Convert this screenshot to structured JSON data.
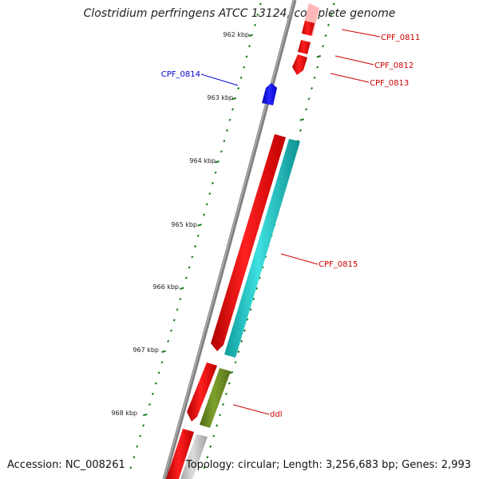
{
  "title": "Clostridium perfringens ATCC 13124, complete genome",
  "footer": {
    "accession": "Accession: NC_008261",
    "topology": "Topology: circular; Length: 3,256,683 bp; Genes: 2,993"
  },
  "ticks": [
    "962 kbp",
    "963 kbp",
    "964 kbp",
    "965 kbp",
    "966 kbp",
    "967 kbp",
    "968 kbp"
  ],
  "genes": [
    {
      "name": "CPF_0811",
      "color": "#cc0000"
    },
    {
      "name": "CPF_0812",
      "color": "#cc0000"
    },
    {
      "name": "CPF_0813",
      "color": "#cc0000"
    },
    {
      "name": "CPF_0814",
      "color": "#0000cc"
    },
    {
      "name": "CPF_0815",
      "color": "#cc0000"
    },
    {
      "name": "ddl",
      "color": "#cc0000"
    }
  ],
  "colors": {
    "backbone": "#808080",
    "gene_red": "#ff0000",
    "gene_pink": "#ffb6b6",
    "gene_blue": "#1010ff",
    "gene_cyan": "#22cccc",
    "gene_olive": "#6b8e23",
    "gene_grey": "#c0c0c0",
    "tick": "#1a7a1a"
  }
}
